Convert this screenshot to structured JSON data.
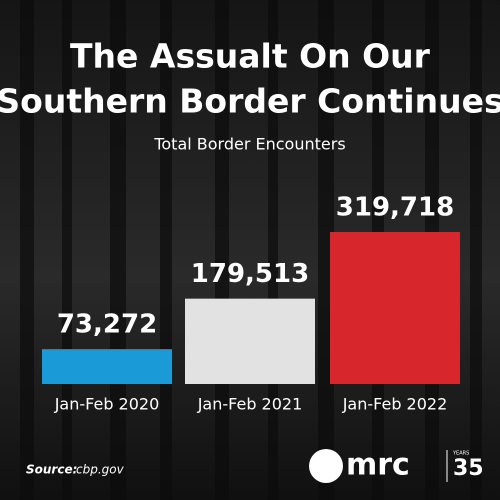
{
  "chart_data": {
    "type": "bar",
    "title": [
      "The Assualt On Our",
      "Southern Border Continues"
    ],
    "subtitle": "Total Border Encounters",
    "categories": [
      "Jan-Feb 2020",
      "Jan-Feb 2021",
      "Jan-Feb 2022"
    ],
    "values": [
      73272,
      179513,
      319718
    ],
    "value_labels": [
      "73,272",
      "179,513",
      "319,718"
    ],
    "colors": [
      "#1b9ad8",
      "#e2e2e2",
      "#d8262d"
    ]
  },
  "source_label": "Source:",
  "source": "cbp.gov",
  "logo": {
    "text": "mrc",
    "years_label": "YEARS",
    "years": "35"
  }
}
